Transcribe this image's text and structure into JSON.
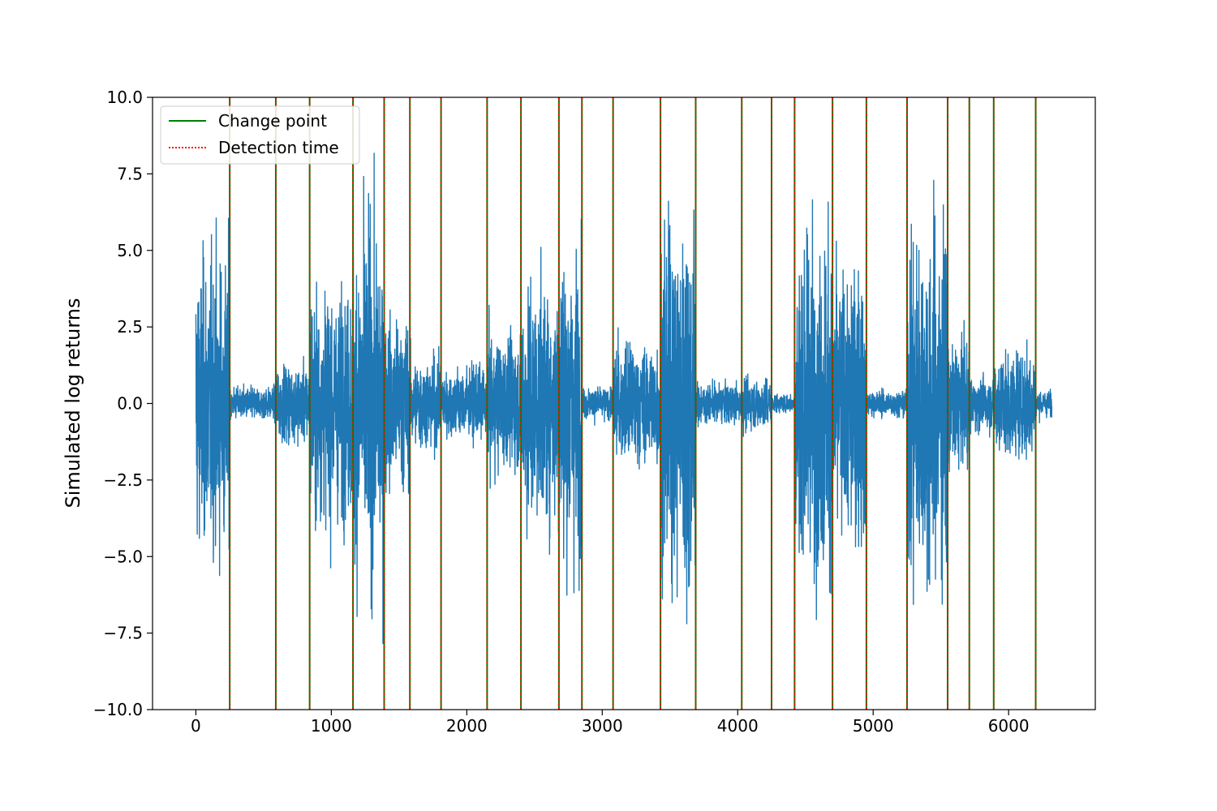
{
  "chart_data": {
    "type": "line",
    "title": "",
    "xlabel": "",
    "ylabel": "Simulated log returns",
    "xlim": [
      -320,
      6640
    ],
    "ylim": [
      -10.0,
      10.0
    ],
    "xticks": [
      0,
      1000,
      2000,
      3000,
      4000,
      5000,
      6000
    ],
    "yticks": [
      -10.0,
      -7.5,
      -5.0,
      -2.5,
      0.0,
      2.5,
      5.0,
      7.5,
      10.0
    ],
    "xtick_labels": [
      "0",
      "1000",
      "2000",
      "3000",
      "4000",
      "5000",
      "6000"
    ],
    "ytick_labels": [
      "−10.0",
      "−7.5",
      "−5.0",
      "−2.5",
      "0.0",
      "2.5",
      "5.0",
      "7.5",
      "10.0"
    ],
    "grid": false,
    "legend": {
      "placement": "upper-left",
      "entries": [
        {
          "label": "Change point",
          "color": "#008000",
          "style": "solid"
        },
        {
          "label": "Detection time",
          "color": "#ff0000",
          "style": "dotted"
        }
      ]
    },
    "series": [
      {
        "color": "#1f77b4",
        "n_points": 6320,
        "description_segments": [
          {
            "start": 0,
            "end": 250,
            "amplitude": 2.2
          },
          {
            "start": 250,
            "end": 590,
            "amplitude": 0.25
          },
          {
            "start": 590,
            "end": 840,
            "amplitude": 0.6
          },
          {
            "start": 840,
            "end": 1160,
            "amplitude": 1.7
          },
          {
            "start": 1160,
            "end": 1390,
            "amplitude": 2.6
          },
          {
            "start": 1390,
            "end": 1580,
            "amplitude": 1.3
          },
          {
            "start": 1580,
            "end": 1810,
            "amplitude": 0.7
          },
          {
            "start": 1810,
            "end": 2150,
            "amplitude": 0.55
          },
          {
            "start": 2150,
            "end": 2400,
            "amplitude": 1.0
          },
          {
            "start": 2400,
            "end": 2680,
            "amplitude": 1.8
          },
          {
            "start": 2680,
            "end": 2850,
            "amplitude": 2.4
          },
          {
            "start": 2850,
            "end": 3080,
            "amplitude": 0.25
          },
          {
            "start": 3080,
            "end": 3430,
            "amplitude": 0.9
          },
          {
            "start": 3430,
            "end": 3690,
            "amplitude": 2.8
          },
          {
            "start": 3690,
            "end": 4030,
            "amplitude": 0.3
          },
          {
            "start": 4030,
            "end": 4250,
            "amplitude": 0.4
          },
          {
            "start": 4250,
            "end": 4420,
            "amplitude": 0.15
          },
          {
            "start": 4420,
            "end": 4700,
            "amplitude": 2.6
          },
          {
            "start": 4700,
            "end": 4950,
            "amplitude": 2.1
          },
          {
            "start": 4950,
            "end": 5250,
            "amplitude": 0.2
          },
          {
            "start": 5250,
            "end": 5550,
            "amplitude": 2.7
          },
          {
            "start": 5550,
            "end": 5710,
            "amplitude": 1.0
          },
          {
            "start": 5710,
            "end": 5890,
            "amplitude": 0.4
          },
          {
            "start": 5890,
            "end": 6200,
            "amplitude": 0.8
          },
          {
            "start": 6200,
            "end": 6320,
            "amplitude": 0.2
          }
        ]
      }
    ],
    "change_points": [
      250,
      590,
      840,
      1160,
      1390,
      1580,
      1810,
      2150,
      2400,
      2680,
      2850,
      3080,
      3430,
      3690,
      4030,
      4250,
      4420,
      4700,
      4950,
      5250,
      5550,
      5710,
      5890,
      6200
    ],
    "detection_times": [
      250,
      590,
      840,
      1160,
      1390,
      1580,
      1810,
      2150,
      2400,
      2680,
      2850,
      3080,
      3430,
      3690,
      4030,
      4250,
      4420,
      4700,
      4950,
      5250,
      5550,
      5710,
      5890,
      6200
    ]
  }
}
